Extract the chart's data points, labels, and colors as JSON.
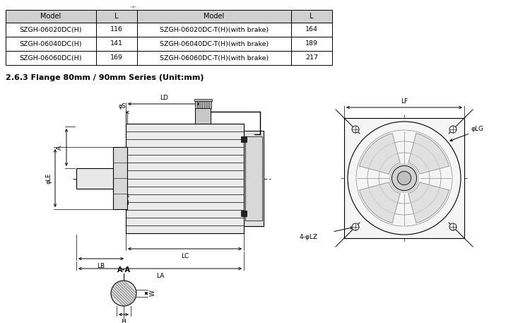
{
  "bg_color": "#ffffff",
  "table_header_bg": "#d0d0d0",
  "table_border_color": "#000000",
  "title_text": "2.6.3 Flange 80mm / 90mm Series (Unit:mm)",
  "table_cols": [
    "Model",
    "L",
    "Model",
    "L"
  ],
  "table_rows": [
    [
      "SZGH-06020DC(H)",
      "116",
      "SZGH-06020DC-T(H)(with brake)",
      "164"
    ],
    [
      "SZGH-06040DC(H)",
      "141",
      "SZGH-06040DC-T(H)(with brake)",
      "189"
    ],
    [
      "SZGH-06060DC(H)",
      "169",
      "SZGH-06060DC-T(H)(with brake)",
      "217"
    ]
  ],
  "font_color": "#000000",
  "line_color": "#000000",
  "dim_color": "#000000"
}
